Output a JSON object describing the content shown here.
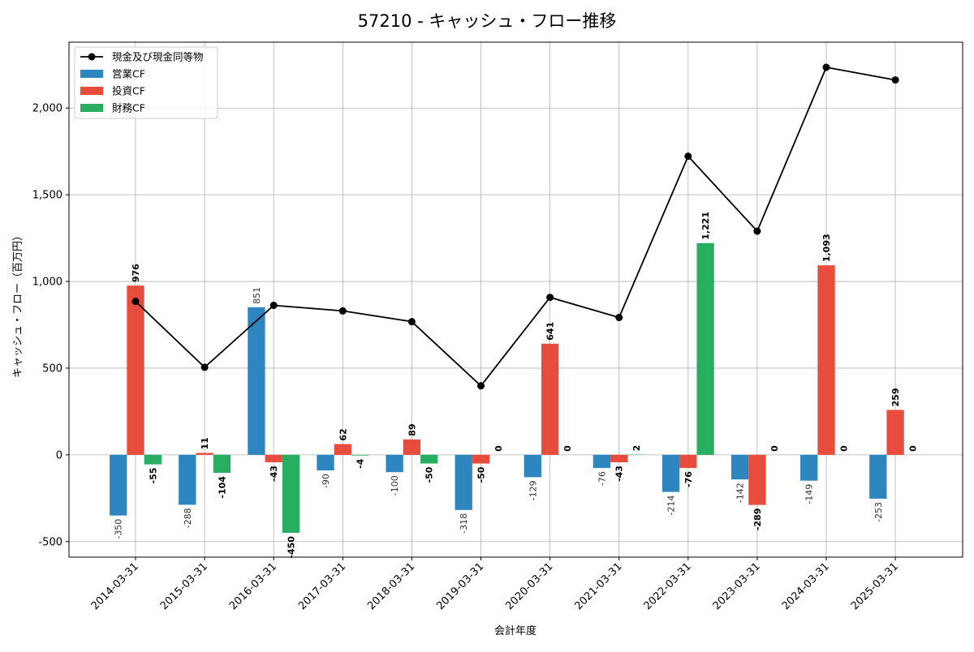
{
  "chart_data": {
    "type": "bar",
    "title": "57210 - キャッシュ・フロー推移",
    "xlabel": "会計年度",
    "ylabel": "キャッシュ・フロー（百万円）",
    "categories": [
      "2014-03-31",
      "2015-03-31",
      "2016-03-31",
      "2017-03-31",
      "2018-03-31",
      "2019-03-31",
      "2020-03-31",
      "2021-03-31",
      "2022-03-31",
      "2023-03-31",
      "2024-03-31",
      "2025-03-31"
    ],
    "ylim": [
      -590,
      2380
    ],
    "yticks": [
      -500,
      0,
      500,
      1000,
      1500,
      2000
    ],
    "ytick_labels": [
      "-500",
      "0",
      "500",
      "1,000",
      "1,500",
      "2,000"
    ],
    "grid": true,
    "legend_position": "top-left",
    "series": [
      {
        "name": "営業CF",
        "kind": "bar",
        "color": "#2e86c1",
        "values": [
          -350,
          -288,
          851,
          -90,
          -100,
          -318,
          -129,
          -76,
          -214,
          -142,
          -149,
          -253
        ],
        "labels": [
          "-350",
          "-288",
          "851",
          "-90",
          "-100",
          "-318",
          "-129",
          "-76",
          "-214",
          "-142",
          "-149",
          "-253"
        ]
      },
      {
        "name": "投資CF",
        "kind": "bar",
        "color": "#e74c3c",
        "values": [
          976,
          11,
          -43,
          62,
          89,
          -50,
          641,
          -43,
          -76,
          -289,
          1093,
          259
        ],
        "labels": [
          "976",
          "11",
          "-43",
          "62",
          "89",
          "-50",
          "641",
          "-43",
          "-76",
          "-289",
          "1,093",
          "259"
        ]
      },
      {
        "name": "財務CF",
        "kind": "bar",
        "color": "#27ae60",
        "values": [
          -55,
          -104,
          -450,
          -4,
          -50,
          0,
          0,
          2,
          1221,
          0,
          0,
          0
        ],
        "labels": [
          "-55",
          "-104",
          "-450",
          "-4",
          "-50",
          "0",
          "0",
          "2",
          "1,221",
          "0",
          "0",
          "0"
        ]
      },
      {
        "name": "現金及び現金同等物",
        "kind": "line",
        "color": "#000000",
        "values": [
          885,
          505,
          862,
          830,
          768,
          398,
          908,
          792,
          1722,
          1290,
          2235,
          2162
        ]
      }
    ]
  }
}
